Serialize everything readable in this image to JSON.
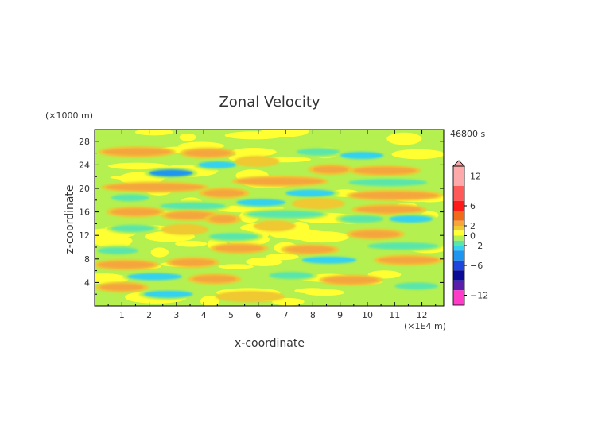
{
  "chart_data": {
    "type": "heatmap",
    "title": "Zonal Velocity",
    "xlabel": "x-coordinate",
    "ylabel": "z-coordinate",
    "x_unit": "(×1E4 m)",
    "y_unit": "(×1000 m)",
    "time_label": "46800 s",
    "xlim": [
      0,
      12.8
    ],
    "ylim": [
      0,
      30
    ],
    "x_ticks": [
      "1",
      "2",
      "3",
      "4",
      "5",
      "6",
      "7",
      "8",
      "9",
      "10",
      "11",
      "12"
    ],
    "x_tick_values": [
      1,
      2,
      3,
      4,
      5,
      6,
      7,
      8,
      9,
      10,
      11,
      12
    ],
    "y_ticks": [
      "4",
      "8",
      "12",
      "16",
      "20",
      "24",
      "28"
    ],
    "y_tick_values": [
      4,
      8,
      12,
      16,
      20,
      24,
      28
    ],
    "colorbar": {
      "min": -14,
      "max": 14,
      "tick_labels": [
        "12",
        "6",
        "2",
        "0",
        "−2",
        "−6",
        "−12"
      ],
      "tick_values": [
        12,
        6,
        2,
        0,
        -2,
        -6,
        -12
      ],
      "colors": [
        {
          "from": 10,
          "to": 14,
          "color": "#ffaaaa"
        },
        {
          "from": 7,
          "to": 10,
          "color": "#ff5a5a"
        },
        {
          "from": 5,
          "to": 7,
          "color": "#ff1a1a"
        },
        {
          "from": 3,
          "to": 5,
          "color": "#f06a1a"
        },
        {
          "from": 2,
          "to": 3,
          "color": "#f5a53c"
        },
        {
          "from": 1,
          "to": 2,
          "color": "#f0c832"
        },
        {
          "from": 0,
          "to": 1,
          "color": "#ffff32"
        },
        {
          "from": -1,
          "to": 0,
          "color": "#b4f050"
        },
        {
          "from": -2,
          "to": -1,
          "color": "#5ae6aa"
        },
        {
          "from": -3,
          "to": -2,
          "color": "#32d2f0"
        },
        {
          "from": -5,
          "to": -3,
          "color": "#1e96f0"
        },
        {
          "from": -7,
          "to": -5,
          "color": "#1e46dc"
        },
        {
          "from": -9,
          "to": -7,
          "color": "#0a0a96"
        },
        {
          "from": -11,
          "to": -9,
          "color": "#5a1eaa"
        },
        {
          "from": -14,
          "to": -11,
          "color": "#ff3cc8"
        }
      ]
    },
    "field_description": "Horizontal banded structures of positive (orange) and negative (cyan/blue) zonal velocity over a light green/yellow background between -2 and +4 m/s",
    "bands": [
      {
        "x0": 0.3,
        "x1": 2.8,
        "z": 26.2,
        "v": 2.8
      },
      {
        "x0": 3.3,
        "x1": 5.0,
        "z": 26.0,
        "v": 2.5
      },
      {
        "x0": 7.4,
        "x1": 9.0,
        "z": 26.2,
        "v": -1.6
      },
      {
        "x0": 9.0,
        "x1": 10.6,
        "z": 25.6,
        "v": -2.5
      },
      {
        "x0": 2.0,
        "x1": 3.6,
        "z": 22.6,
        "v": -3.2
      },
      {
        "x0": 3.8,
        "x1": 5.2,
        "z": 24.0,
        "v": -2.2
      },
      {
        "x0": 5.3,
        "x1": 6.6,
        "z": 24.6,
        "v": 1.8
      },
      {
        "x0": 8.0,
        "x1": 9.3,
        "z": 23.2,
        "v": 2.2
      },
      {
        "x0": 9.5,
        "x1": 11.8,
        "z": 23.0,
        "v": 2.8
      },
      {
        "x0": 0.4,
        "x1": 4.0,
        "z": 20.2,
        "v": 2.6
      },
      {
        "x0": 5.2,
        "x1": 8.4,
        "z": 21.2,
        "v": 2.6
      },
      {
        "x0": 7.0,
        "x1": 8.8,
        "z": 19.2,
        "v": -2.3
      },
      {
        "x0": 9.3,
        "x1": 12.2,
        "z": 21.0,
        "v": -1.5
      },
      {
        "x0": 4.0,
        "x1": 5.5,
        "z": 19.2,
        "v": 2.0
      },
      {
        "x0": 9.4,
        "x1": 12.6,
        "z": 18.8,
        "v": 2.5
      },
      {
        "x0": 0.6,
        "x1": 2.0,
        "z": 18.4,
        "v": -1.7
      },
      {
        "x0": 2.4,
        "x1": 4.8,
        "z": 17.0,
        "v": -2.0
      },
      {
        "x0": 5.2,
        "x1": 7.0,
        "z": 17.6,
        "v": -2.2
      },
      {
        "x0": 7.4,
        "x1": 9.0,
        "z": 17.4,
        "v": 1.6
      },
      {
        "x0": 0.6,
        "x1": 2.4,
        "z": 16.0,
        "v": 2.4
      },
      {
        "x0": 2.6,
        "x1": 4.4,
        "z": 15.4,
        "v": 2.6
      },
      {
        "x0": 4.2,
        "x1": 5.2,
        "z": 14.8,
        "v": 2.2
      },
      {
        "x0": 9.6,
        "x1": 12.0,
        "z": 16.4,
        "v": 2.3
      },
      {
        "x0": 5.6,
        "x1": 8.4,
        "z": 15.6,
        "v": -1.6
      },
      {
        "x0": 9.0,
        "x1": 10.6,
        "z": 14.8,
        "v": -1.7
      },
      {
        "x0": 10.8,
        "x1": 12.4,
        "z": 14.8,
        "v": -2.6
      },
      {
        "x0": 0.6,
        "x1": 2.2,
        "z": 13.2,
        "v": -1.5
      },
      {
        "x0": 2.6,
        "x1": 4.0,
        "z": 13.0,
        "v": 1.8
      },
      {
        "x0": 6.0,
        "x1": 7.2,
        "z": 13.6,
        "v": 1.6
      },
      {
        "x0": 9.4,
        "x1": 11.2,
        "z": 12.2,
        "v": 2.4
      },
      {
        "x0": 4.2,
        "x1": 6.0,
        "z": 11.8,
        "v": -1.5
      },
      {
        "x0": 4.4,
        "x1": 6.2,
        "z": 9.8,
        "v": 2.2
      },
      {
        "x0": 7.0,
        "x1": 8.8,
        "z": 9.6,
        "v": 2.6
      },
      {
        "x0": 7.6,
        "x1": 9.6,
        "z": 7.8,
        "v": -2.2
      },
      {
        "x0": 0.1,
        "x1": 1.6,
        "z": 9.4,
        "v": -1.8
      },
      {
        "x0": 0.1,
        "x1": 2.2,
        "z": 7.0,
        "v": 2.4
      },
      {
        "x0": 2.8,
        "x1": 4.4,
        "z": 7.4,
        "v": 2.0
      },
      {
        "x0": 10.0,
        "x1": 12.6,
        "z": 10.2,
        "v": -1.5
      },
      {
        "x0": 10.4,
        "x1": 12.6,
        "z": 7.8,
        "v": 2.2
      },
      {
        "x0": 1.2,
        "x1": 3.2,
        "z": 5.0,
        "v": -2.5
      },
      {
        "x0": 3.6,
        "x1": 5.2,
        "z": 4.6,
        "v": 2.2
      },
      {
        "x0": 6.4,
        "x1": 8.0,
        "z": 5.2,
        "v": -1.6
      },
      {
        "x0": 8.4,
        "x1": 10.4,
        "z": 4.4,
        "v": 2.0
      },
      {
        "x0": 11.0,
        "x1": 12.6,
        "z": 3.4,
        "v": -1.8
      },
      {
        "x0": 1.8,
        "x1": 3.6,
        "z": 2.0,
        "v": -2.4
      },
      {
        "x0": 0.2,
        "x1": 1.8,
        "z": 3.2,
        "v": 2.2
      },
      {
        "x0": 4.6,
        "x1": 6.8,
        "z": 1.6,
        "v": 1.6
      }
    ]
  }
}
